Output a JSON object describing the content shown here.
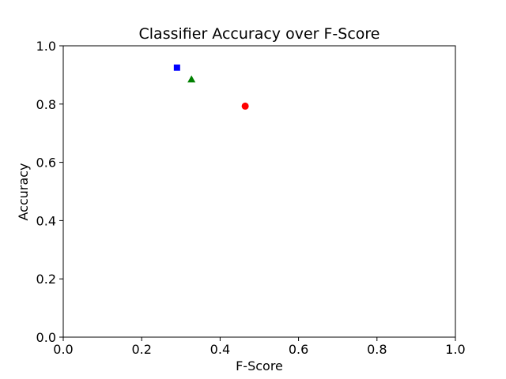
{
  "chart_data": {
    "type": "scatter",
    "title": "Classifier Accuracy over F-Score",
    "xlabel": "F-Score",
    "ylabel": "Accuracy",
    "xlim": [
      0.0,
      1.0
    ],
    "ylim": [
      0.0,
      1.0
    ],
    "xticks": [
      "0.0",
      "0.2",
      "0.4",
      "0.6",
      "0.8",
      "1.0"
    ],
    "yticks": [
      "0.0",
      "0.2",
      "0.4",
      "0.6",
      "0.8",
      "1.0"
    ],
    "grid": false,
    "series": [
      {
        "x": [
          0.29
        ],
        "y": [
          0.925
        ],
        "marker": "square",
        "color": "#0000ff"
      },
      {
        "x": [
          0.327
        ],
        "y": [
          0.885
        ],
        "marker": "triangle",
        "color": "#008000"
      },
      {
        "x": [
          0.464
        ],
        "y": [
          0.793
        ],
        "marker": "circle",
        "color": "#ff0000"
      }
    ]
  }
}
